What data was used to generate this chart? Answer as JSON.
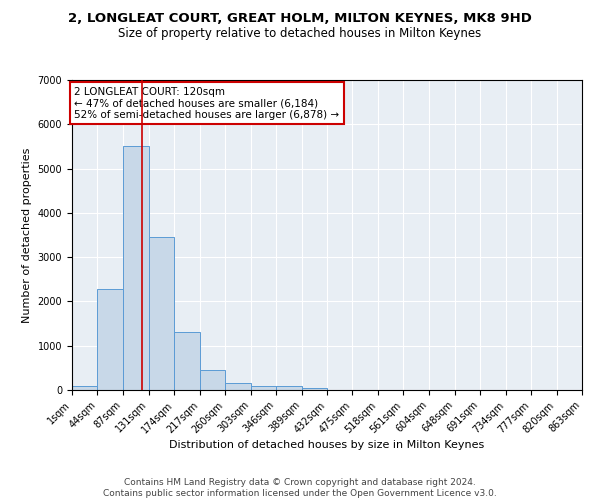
{
  "title1": "2, LONGLEAT COURT, GREAT HOLM, MILTON KEYNES, MK8 9HD",
  "title2": "Size of property relative to detached houses in Milton Keynes",
  "xlabel": "Distribution of detached houses by size in Milton Keynes",
  "ylabel": "Number of detached properties",
  "bin_edges": [
    1,
    44,
    87,
    131,
    174,
    217,
    260,
    303,
    346,
    389,
    432,
    475,
    518,
    561,
    604,
    648,
    691,
    734,
    777,
    820,
    863
  ],
  "bar_heights": [
    80,
    2280,
    5500,
    3450,
    1310,
    460,
    160,
    80,
    80,
    50,
    0,
    0,
    0,
    0,
    0,
    0,
    0,
    0,
    0,
    0
  ],
  "bar_color": "#c8d8e8",
  "bar_edge_color": "#5b9bd5",
  "property_size": 120,
  "red_line_color": "#cc0000",
  "annotation_text": "2 LONGLEAT COURT: 120sqm\n← 47% of detached houses are smaller (6,184)\n52% of semi-detached houses are larger (6,878) →",
  "annotation_box_color": "white",
  "annotation_border_color": "#cc0000",
  "ylim": [
    0,
    7000
  ],
  "background_color": "#e8eef4",
  "grid_color": "white",
  "footer_text": "Contains HM Land Registry data © Crown copyright and database right 2024.\nContains public sector information licensed under the Open Government Licence v3.0.",
  "title1_fontsize": 9.5,
  "title2_fontsize": 8.5,
  "xlabel_fontsize": 8,
  "ylabel_fontsize": 8,
  "tick_fontsize": 7,
  "footer_fontsize": 6.5,
  "annotation_fontsize": 7.5
}
